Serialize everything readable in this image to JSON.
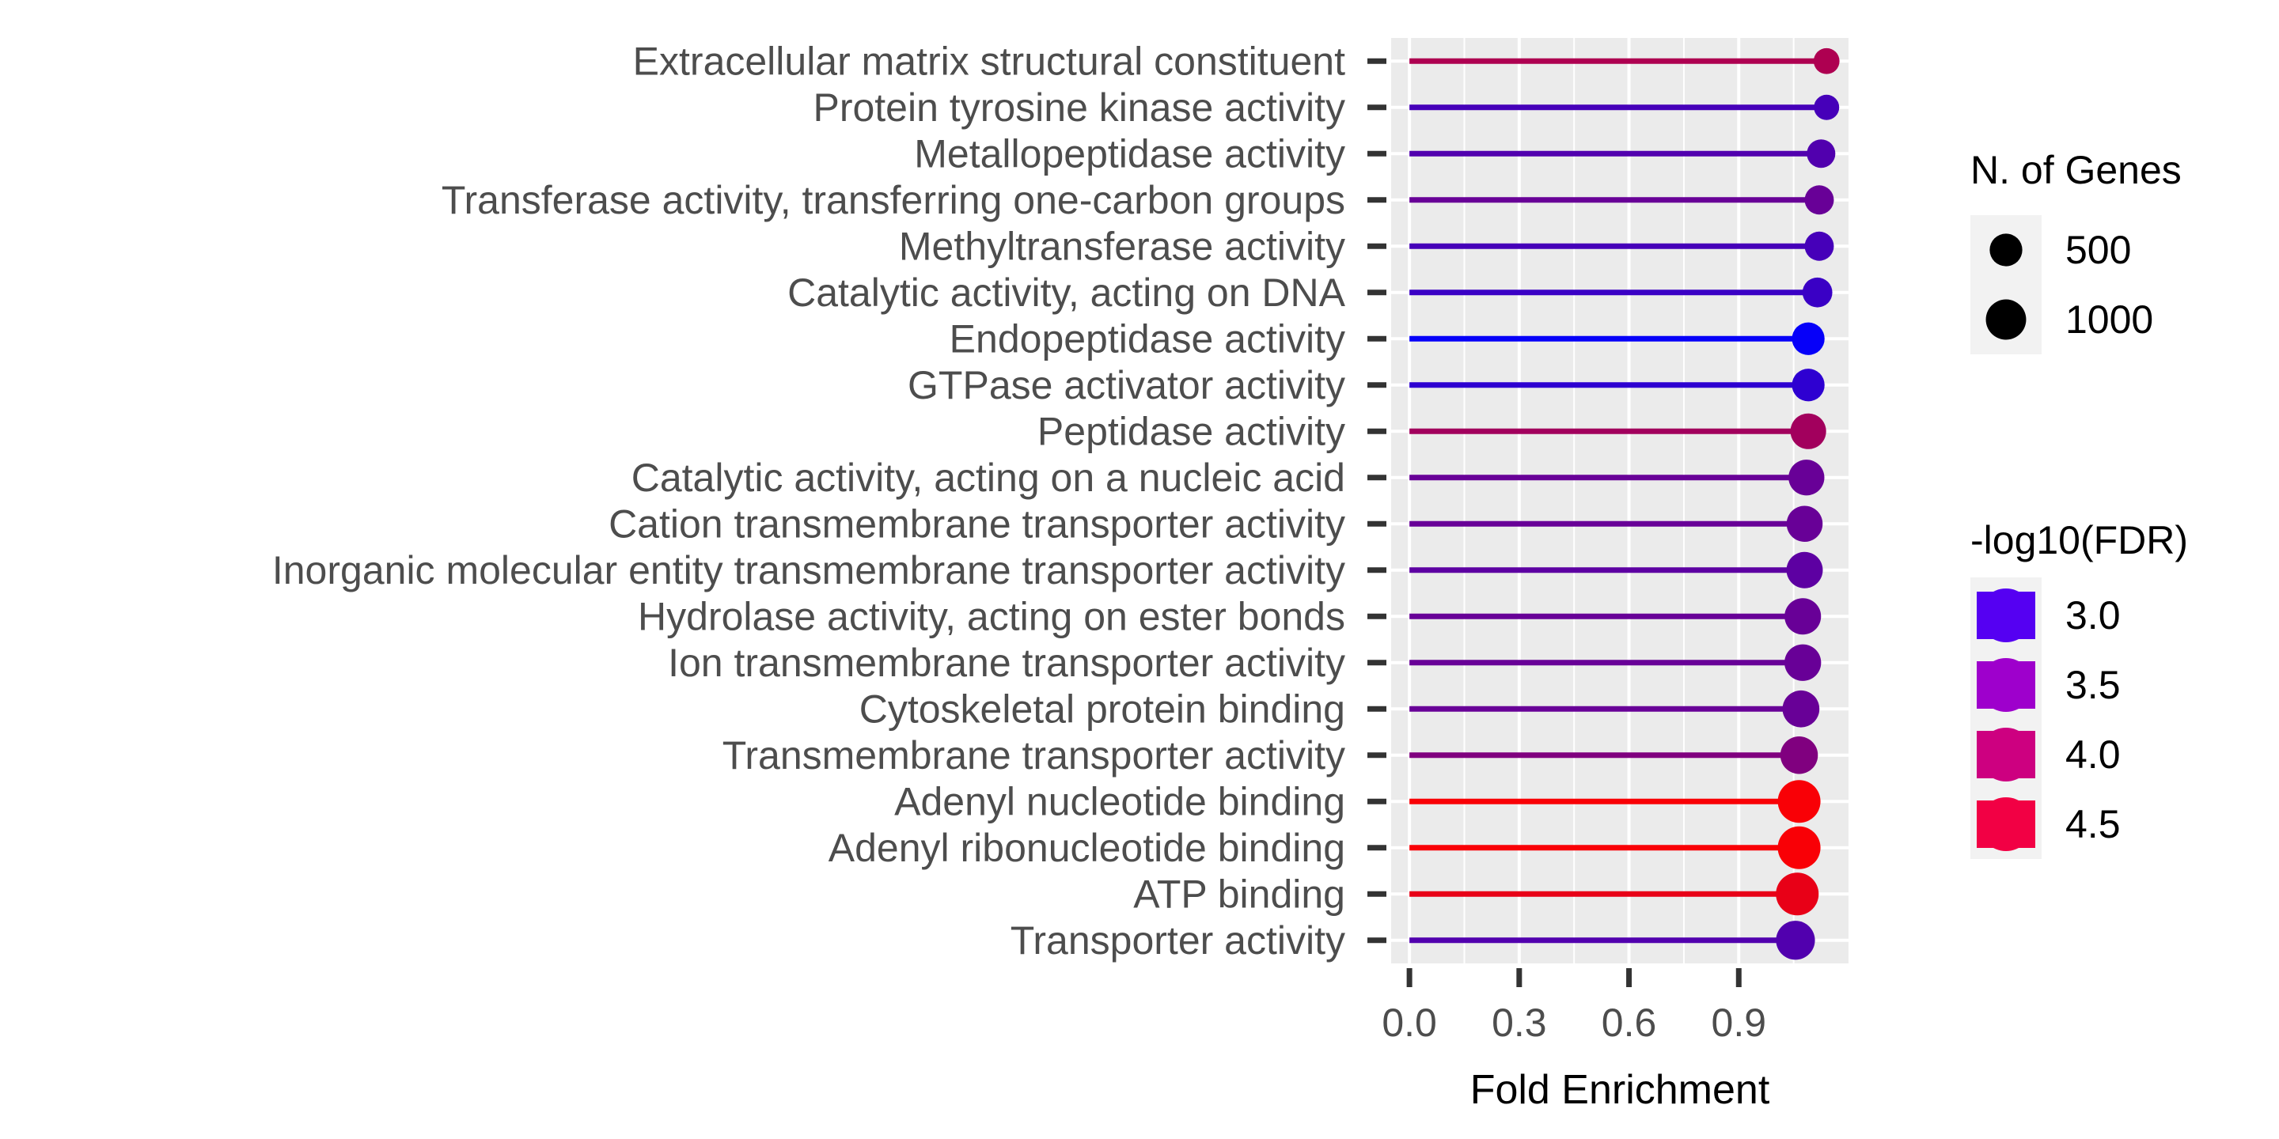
{
  "chart_data": {
    "type": "lollipop",
    "xlabel": "Fold Enrichment",
    "ylabel": "",
    "xlim": [
      -0.05,
      1.2
    ],
    "x_ticks": [
      0.0,
      0.3,
      0.6,
      0.9
    ],
    "x_tick_labels": [
      "0.0",
      "0.3",
      "0.6",
      "0.9"
    ],
    "grid": true,
    "legend_placement": "right",
    "color_scale": {
      "title": "-log10(FDR)",
      "low_color": "#0000ff",
      "high_color": "#ff0000",
      "range": [
        2.6,
        4.8
      ],
      "breaks": [
        3.0,
        3.5,
        4.0,
        4.5
      ],
      "break_labels": [
        "3.0",
        "3.5",
        "4.0",
        "4.5"
      ],
      "break_colors": [
        "#5500f2",
        "#9e00cc",
        "#cd0080",
        "#f20044"
      ]
    },
    "size_scale": {
      "title": "N. of Genes",
      "breaks": [
        500,
        1000
      ],
      "break_labels": [
        "500",
        "1000"
      ]
    },
    "categories": [
      "Extracellular matrix structural constituent",
      "Protein tyrosine kinase activity",
      "Metallopeptidase activity",
      "Transferase activity, transferring one-carbon groups",
      "Methyltransferase activity",
      "Catalytic activity, acting on DNA",
      "Endopeptidase activity",
      "GTPase activator activity",
      "Peptidase activity",
      "Catalytic activity, acting on a nucleic acid",
      "Cation transmembrane transporter activity",
      "Inorganic molecular entity transmembrane transporter activity",
      "Hydrolase activity, acting on ester bonds",
      "Ion transmembrane transporter activity",
      "Cytoskeletal protein binding",
      "Transmembrane transporter activity",
      "Adenyl nucleotide binding",
      "Adenyl ribonucleotide binding",
      "ATP binding",
      "Transporter activity"
    ],
    "values": [
      1.14,
      1.14,
      1.125,
      1.12,
      1.12,
      1.115,
      1.09,
      1.09,
      1.09,
      1.085,
      1.08,
      1.08,
      1.075,
      1.075,
      1.07,
      1.065,
      1.065,
      1.065,
      1.06,
      1.055
    ],
    "genes": [
      200,
      180,
      300,
      330,
      330,
      360,
      500,
      500,
      680,
      690,
      700,
      720,
      730,
      740,
      760,
      800,
      1200,
      1200,
      1200,
      900
    ],
    "neg_log10_fdr": [
      4.1,
      3.2,
      3.3,
      3.5,
      3.2,
      3.1,
      2.65,
      3.0,
      4.0,
      3.5,
      3.5,
      3.4,
      3.5,
      3.5,
      3.5,
      3.7,
      4.75,
      4.75,
      4.6,
      3.3
    ]
  }
}
